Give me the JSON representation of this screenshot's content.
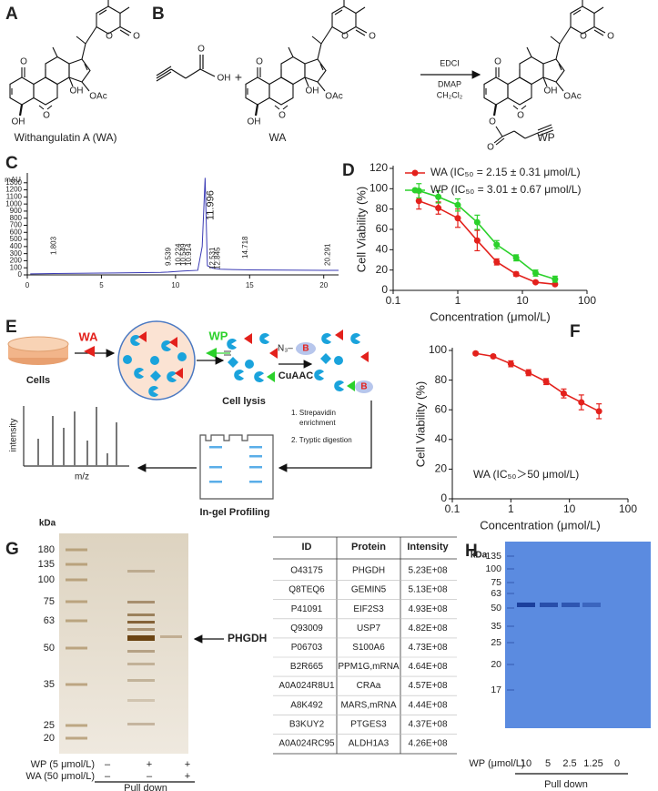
{
  "panel_labels": [
    "A",
    "B",
    "C",
    "D",
    "E",
    "F",
    "G",
    "H"
  ],
  "structures": {
    "wa_name": "Withangulatin A (WA)",
    "wa": {
      "name": "WA",
      "atoms": [
        "O",
        "OH",
        "O",
        "OH",
        "OAc",
        "O",
        "O"
      ]
    },
    "wp": {
      "name": "WP",
      "atoms": [
        "O",
        "O",
        "O",
        "OH",
        "OAc",
        "O",
        "O",
        "O"
      ]
    },
    "acid": {
      "atoms": [
        "O",
        "OH"
      ]
    },
    "plus": "+",
    "reagents": [
      "EDCI",
      "DMAP",
      "CH₂Cl₂"
    ]
  },
  "chart_data": [
    {
      "type": "line",
      "ylabel": "mAU",
      "markers": false,
      "xlim": [
        0,
        21
      ],
      "xticks": [
        0,
        5,
        10,
        15,
        20
      ],
      "ylim": [
        0,
        1400
      ],
      "yticks": [
        0,
        100,
        200,
        300,
        400,
        500,
        600,
        700,
        800,
        900,
        1000,
        1100,
        1200,
        1300
      ],
      "x": [
        0.2,
        1.8,
        5,
        9,
        9.5,
        10.5,
        11.5,
        11.8,
        11.996,
        12.15,
        12.5,
        13,
        15,
        20,
        21
      ],
      "series": [
        {
          "color": "#3a3ab4",
          "values": [
            15,
            20,
            25,
            35,
            40,
            55,
            65,
            400,
            1370,
            130,
            95,
            80,
            70,
            65,
            65
          ]
        }
      ],
      "peak_labels": [
        1.803,
        9.539,
        10.224,
        10.549,
        10.914,
        11.996,
        12.531,
        12.845,
        14.718,
        20.291
      ]
    },
    {
      "type": "line",
      "ylabel": "Cell Viability (%)",
      "xlabel": "Concentration (μmol/L)",
      "xscale": "log",
      "xlim": [
        0.1,
        100
      ],
      "xticks": [
        0.1,
        1,
        10,
        100
      ],
      "ylim": [
        0,
        120
      ],
      "yticks": [
        0,
        20,
        40,
        60,
        80,
        100,
        120
      ],
      "legend": "upper right",
      "x": [
        0.25,
        0.5,
        1,
        2,
        4,
        8,
        16,
        32
      ],
      "series": [
        {
          "name": "WA (IC₅₀ = 2.15 ± 0.31 μmol/L)",
          "color": "#e3211c",
          "values": [
            88,
            81,
            71,
            49,
            28,
            16,
            8,
            6
          ],
          "errors": [
            8,
            6,
            9,
            10,
            3,
            2,
            1,
            1
          ]
        },
        {
          "name": "WP (IC₅₀ = 3.01 ± 0.67 μmol/L)",
          "color": "#2bd12b",
          "values": [
            98,
            92,
            84,
            67,
            45,
            32,
            17,
            11
          ],
          "errors": [
            7,
            6,
            6,
            7,
            4,
            3,
            3,
            3
          ]
        }
      ]
    },
    {
      "type": "line",
      "ylabel": "Cell Viability (%)",
      "xlabel": "Concentration (μmol/L)",
      "xscale": "log",
      "xlim": [
        0.1,
        100
      ],
      "xticks": [
        0.1,
        1,
        10,
        100
      ],
      "ylim": [
        0,
        100
      ],
      "yticks": [
        0,
        20,
        40,
        60,
        80,
        100
      ],
      "annotation": "WA (IC₅₀＞50 μmol/L)",
      "x": [
        0.25,
        0.5,
        1,
        2,
        4,
        8,
        16,
        32
      ],
      "series": [
        {
          "color": "#e3211c",
          "values": [
            98,
            96,
            91,
            85,
            79,
            71,
            65,
            59
          ],
          "errors": [
            1,
            1,
            2,
            2,
            2,
            3,
            5,
            5
          ]
        }
      ]
    }
  ],
  "workflow": {
    "cells": "Cells",
    "wa": "WA",
    "wp": "WP",
    "lysis": "Cell lysis",
    "azide": "N₃–",
    "biotin": "B",
    "click": "CuAAC",
    "steps": [
      "1. Strepavidin",
      "enrichment",
      "2. Tryptic digestion"
    ],
    "gel": "In-gel Profiling",
    "y_axis": "intensity",
    "x_axis": "m/z"
  },
  "gel_g": {
    "unit": "kDa",
    "markers": [
      180,
      135,
      100,
      75,
      63,
      50,
      35,
      25,
      20
    ],
    "band": "PHGDH",
    "treatments": [
      {
        "label": "WP (5 μmol/L)",
        "signs": [
          "–",
          "+",
          "+"
        ]
      },
      {
        "label": "WA (50 μmol/L)",
        "signs": [
          "–",
          "–",
          "+"
        ]
      }
    ],
    "group": "Pull down"
  },
  "table": {
    "headers": [
      "ID",
      "Protein",
      "Intensity"
    ],
    "rows": [
      [
        "O43175",
        "PHGDH",
        "5.23E+08"
      ],
      [
        "Q8TEQ6",
        "GEMIN5",
        "5.13E+08"
      ],
      [
        "P41091",
        "EIF2S3",
        "4.93E+08"
      ],
      [
        "Q93009",
        "USP7",
        "4.82E+08"
      ],
      [
        "P06703",
        "S100A6",
        "4.73E+08"
      ],
      [
        "B2R665",
        "PPM1G,mRNA",
        "4.64E+08"
      ],
      [
        "A0A024R8U1",
        "CRAa",
        "4.57E+08"
      ],
      [
        "A8K492",
        "MARS,mRNA",
        "4.44E+08"
      ],
      [
        "B3KUY2",
        "PTGES3",
        "4.37E+08"
      ],
      [
        "A0A024RC95",
        "ALDH1A3",
        "4.26E+08"
      ]
    ]
  },
  "gel_h": {
    "unit": "kDa",
    "markers": [
      135,
      100,
      75,
      63,
      50,
      35,
      25,
      20,
      17
    ],
    "treatment": "WP (μmol/L)",
    "concentrations": [
      10,
      5,
      2.5,
      1.25,
      0
    ],
    "group": "Pull down"
  }
}
